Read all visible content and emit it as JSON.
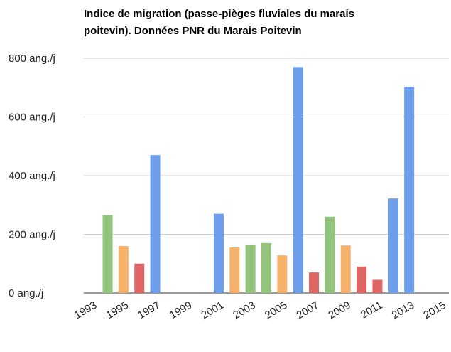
{
  "chart_data": {
    "type": "bar",
    "title": [
      "Indice de migration (passe-pièges fluviales du marais",
      "poitevin). Données PNR du Marais Poitevin"
    ],
    "x": [
      1994,
      1995,
      1996,
      1997,
      2001,
      2002,
      2003,
      2004,
      2005,
      2006,
      2007,
      2008,
      2009,
      2010,
      2011,
      2012,
      2013
    ],
    "values": [
      265,
      160,
      100,
      470,
      270,
      155,
      165,
      170,
      128,
      770,
      70,
      260,
      162,
      90,
      45,
      322,
      703
    ],
    "colors": [
      "#93c47d",
      "#f6b26b",
      "#e06666",
      "#6d9eeb",
      "#6d9eeb",
      "#f6b26b",
      "#93c47d",
      "#93c47d",
      "#f6b26b",
      "#6d9eeb",
      "#e06666",
      "#93c47d",
      "#f6b26b",
      "#e06666",
      "#e06666",
      "#6d9eeb",
      "#6d9eeb"
    ],
    "xlim": [
      1992.5,
      2015.5
    ],
    "xticks": [
      1993,
      1995,
      1997,
      1999,
      2001,
      2003,
      2005,
      2007,
      2009,
      2011,
      2013,
      2015
    ],
    "ylim": [
      0,
      800
    ],
    "yticks": [
      {
        "value": 0,
        "label": "0 ang./j"
      },
      {
        "value": 200,
        "label": "200 ang./j"
      },
      {
        "value": 400,
        "label": "400 ang./j"
      },
      {
        "value": 600,
        "label": "600 ang./j"
      },
      {
        "value": 800,
        "label": "800 ang./j"
      }
    ],
    "grid": true
  }
}
